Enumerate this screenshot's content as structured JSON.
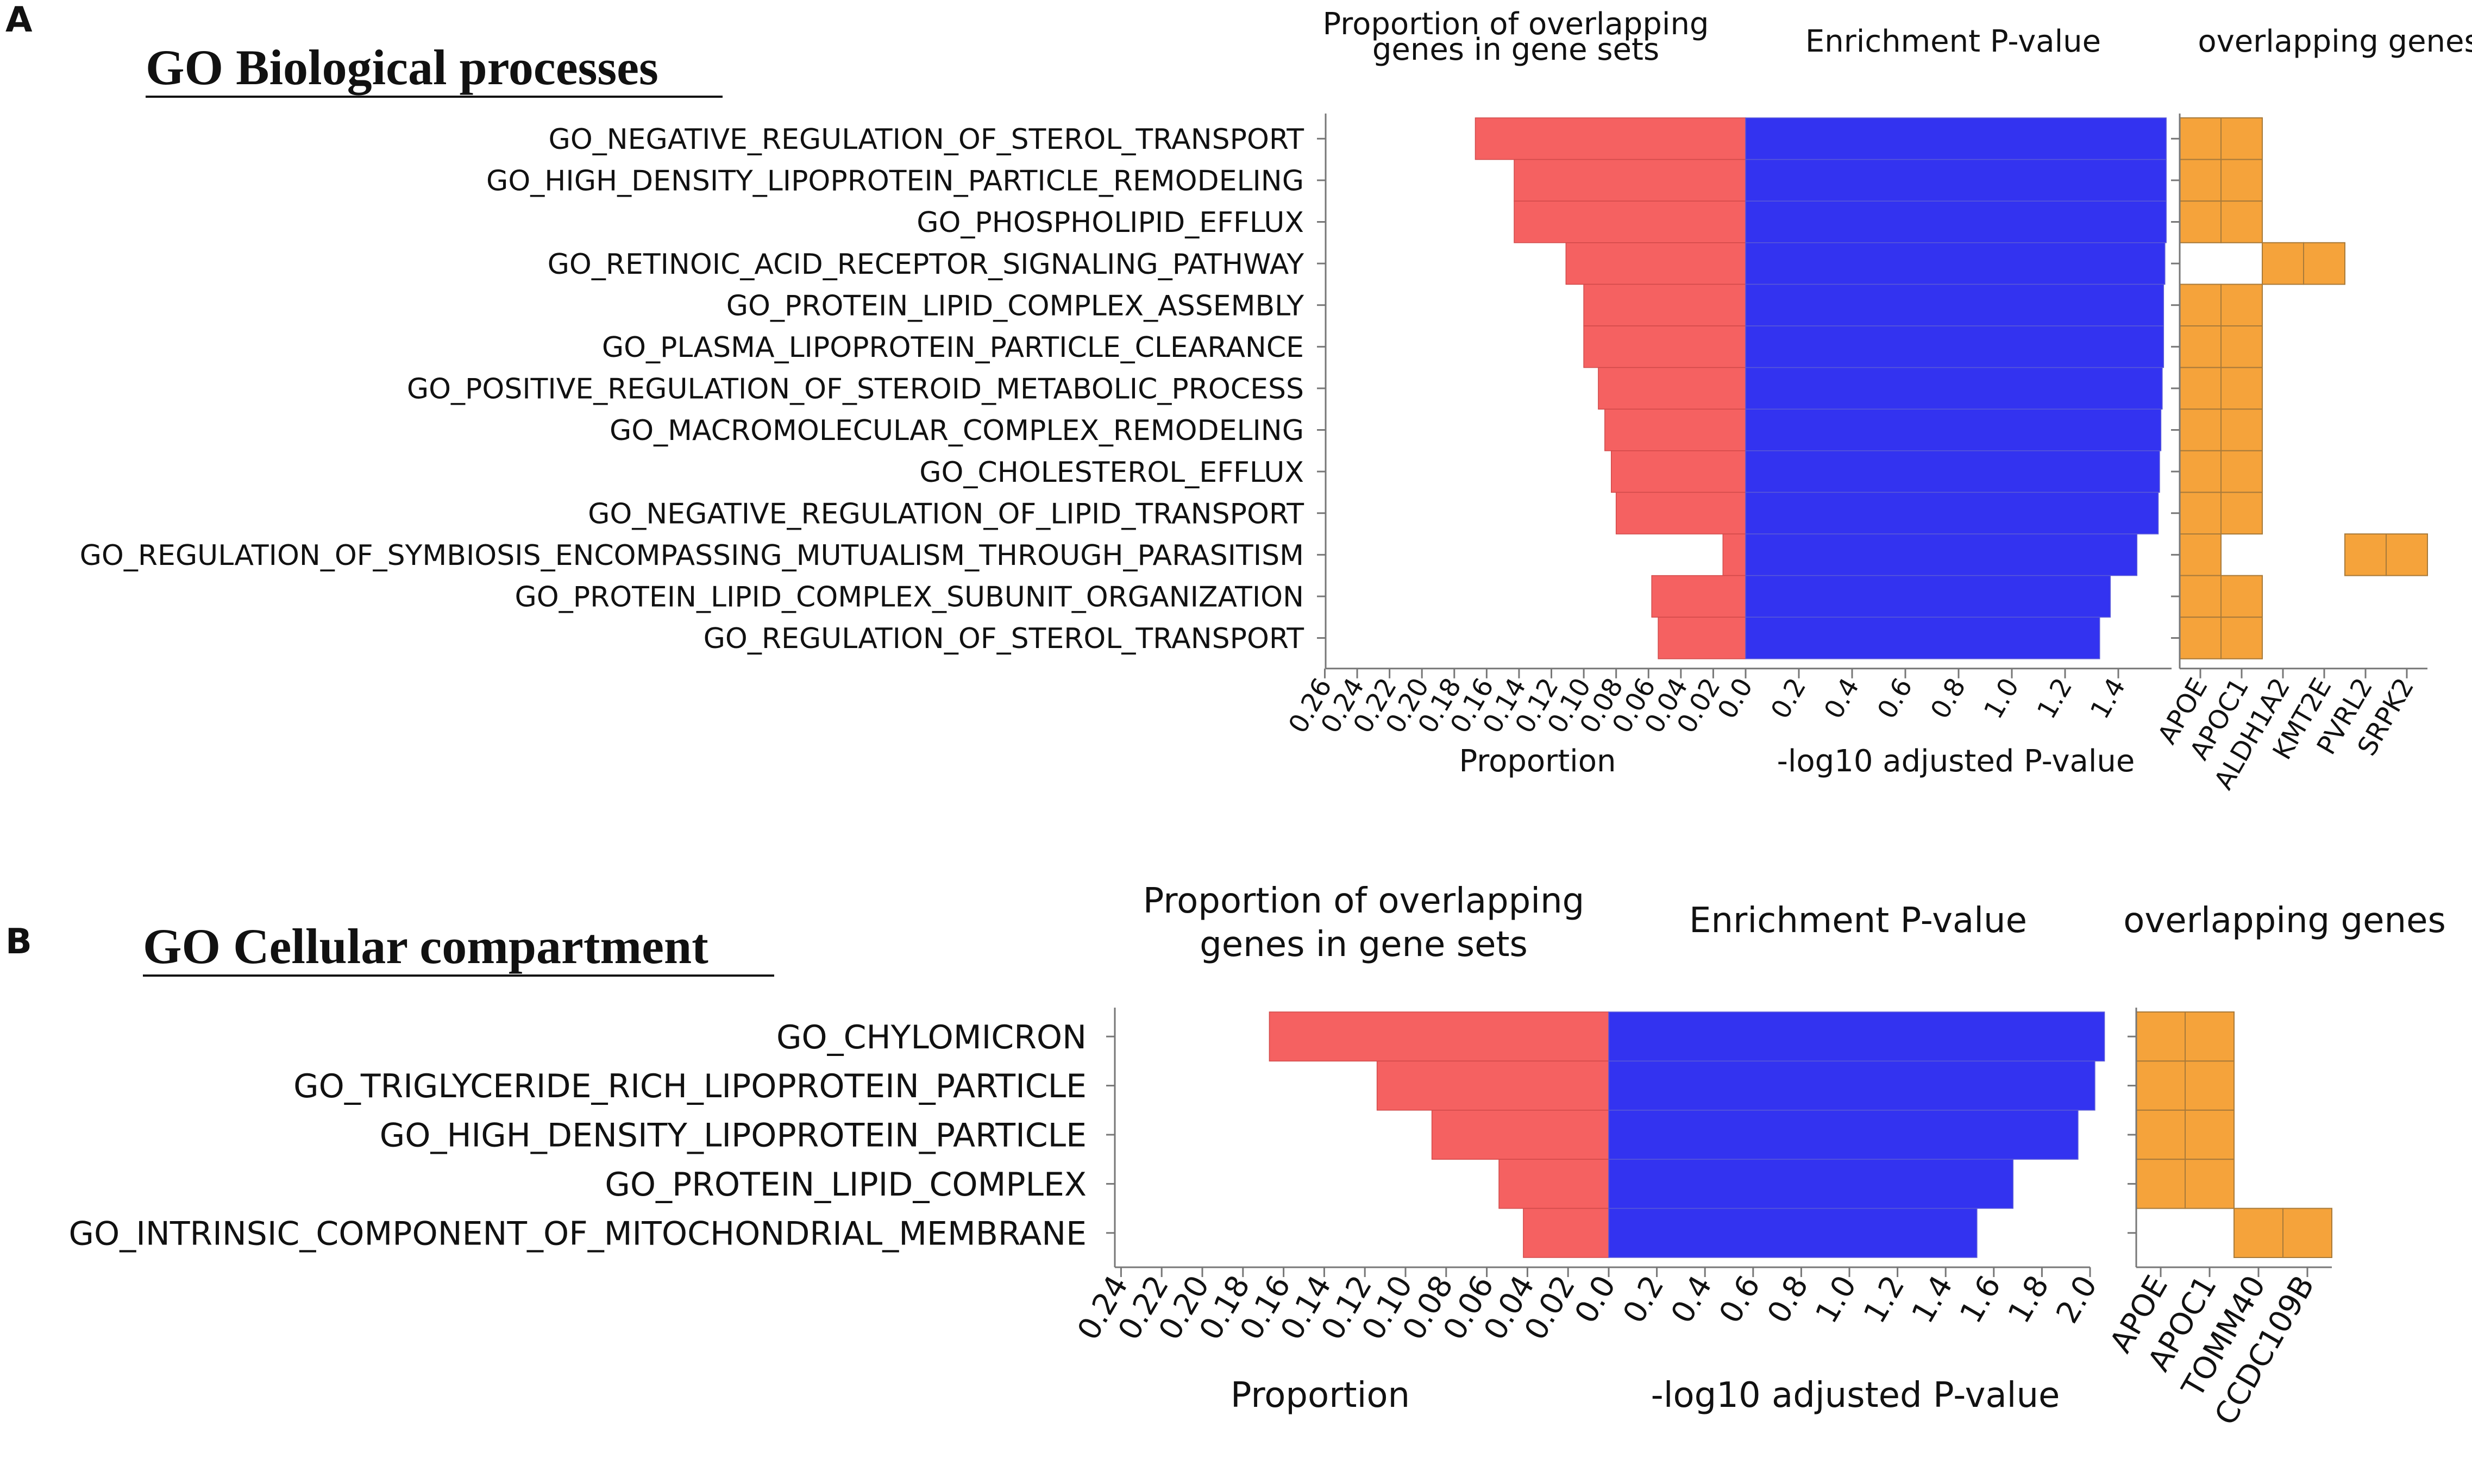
{
  "figure": {
    "panel_a": {
      "letter": "A",
      "heading": "GO Biological processes"
    },
    "panel_b": {
      "letter": "B",
      "heading": "GO Cellular compartment"
    }
  },
  "colors": {
    "proportion_bar": "#f56161",
    "pvalue_bar": "#3333f0",
    "gene_cell": "#f5a33b",
    "axis": "#777777",
    "text": "#111111"
  },
  "chart_data": [
    {
      "type": "bar",
      "panel": "A",
      "title": "GO Biological processes",
      "categories": [
        "GO_NEGATIVE_REGULATION_OF_STEROL_TRANSPORT",
        "GO_HIGH_DENSITY_LIPOPROTEIN_PARTICLE_REMODELING",
        "GO_PHOSPHOLIPID_EFFLUX",
        "GO_RETINOIC_ACID_RECEPTOR_SIGNALING_PATHWAY",
        "GO_PROTEIN_LIPID_COMPLEX_ASSEMBLY",
        "GO_PLASMA_LIPOPROTEIN_PARTICLE_CLEARANCE",
        "GO_POSITIVE_REGULATION_OF_STEROID_METABOLIC_PROCESS",
        "GO_MACROMOLECULAR_COMPLEX_REMODELING",
        "GO_CHOLESTEROL_EFFLUX",
        "GO_NEGATIVE_REGULATION_OF_LIPID_TRANSPORT",
        "GO_REGULATION_OF_SYMBIOSIS_ENCOMPASSING_MUTUALISM_THROUGH_PARASITISM",
        "GO_PROTEIN_LIPID_COMPLEX_SUBUNIT_ORGANIZATION",
        "GO_REGULATION_OF_STEROL_TRANSPORT"
      ],
      "proportion": {
        "title": "Proportion of overlapping genes in gene sets",
        "xlabel": "Proportion",
        "xlim": [
          0,
          0.27
        ],
        "ticks": [
          0.0,
          0.02,
          0.04,
          0.06,
          0.08,
          0.1,
          0.12,
          0.14,
          0.16,
          0.18,
          0.2,
          0.22,
          0.24,
          0.26
        ],
        "tick_labels": [
          "0.0",
          "0.02",
          "0.04",
          "0.06",
          "0.08",
          "0.10",
          "0.12",
          "0.14",
          "0.16",
          "0.18",
          "0.20",
          "0.22",
          "0.24",
          "0.26"
        ],
        "values": [
          0.167,
          0.143,
          0.143,
          0.111,
          0.1,
          0.1,
          0.091,
          0.087,
          0.083,
          0.08,
          0.014,
          0.058,
          0.054
        ]
      },
      "pvalue": {
        "title": "Enrichment P-value",
        "xlabel": "-log10 adjusted P-value",
        "xlim": [
          0,
          1.6
        ],
        "ticks": [
          0.0,
          0.2,
          0.4,
          0.6,
          0.8,
          1.0,
          1.2,
          1.4
        ],
        "tick_labels": [
          "0.0",
          "0.2",
          "0.4",
          "0.6",
          "0.8",
          "1.0",
          "1.2",
          "1.4"
        ],
        "values": [
          1.58,
          1.58,
          1.58,
          1.575,
          1.57,
          1.57,
          1.565,
          1.56,
          1.555,
          1.55,
          1.47,
          1.37,
          1.33
        ]
      },
      "genes": {
        "title": "overlapping genes",
        "names": [
          "APOE",
          "APOC1",
          "ALDH1A2",
          "KMT2E",
          "PVRL2",
          "SRPK2"
        ],
        "matrix": [
          [
            1,
            1,
            0,
            0,
            0,
            0
          ],
          [
            1,
            1,
            0,
            0,
            0,
            0
          ],
          [
            1,
            1,
            0,
            0,
            0,
            0
          ],
          [
            0,
            0,
            1,
            1,
            0,
            0
          ],
          [
            1,
            1,
            0,
            0,
            0,
            0
          ],
          [
            1,
            1,
            0,
            0,
            0,
            0
          ],
          [
            1,
            1,
            0,
            0,
            0,
            0
          ],
          [
            1,
            1,
            0,
            0,
            0,
            0
          ],
          [
            1,
            1,
            0,
            0,
            0,
            0
          ],
          [
            1,
            1,
            0,
            0,
            0,
            0
          ],
          [
            1,
            0,
            0,
            0,
            1,
            1
          ],
          [
            1,
            1,
            0,
            0,
            0,
            0
          ],
          [
            1,
            1,
            0,
            0,
            0,
            0
          ]
        ]
      }
    },
    {
      "type": "bar",
      "panel": "B",
      "title": "GO Cellular compartment",
      "categories": [
        "GO_CHYLOMICRON",
        "GO_TRIGLYCERIDE_RICH_LIPOPROTEIN_PARTICLE",
        "GO_HIGH_DENSITY_LIPOPROTEIN_PARTICLE",
        "GO_PROTEIN_LIPID_COMPLEX",
        "GO_INTRINSIC_COMPONENT_OF_MITOCHONDRIAL_MEMBRANE"
      ],
      "proportion": {
        "title": "Proportion of overlapping genes in gene sets",
        "xlabel": "Proportion",
        "xlim": [
          0,
          0.25
        ],
        "ticks": [
          0.0,
          0.02,
          0.04,
          0.06,
          0.08,
          0.1,
          0.12,
          0.14,
          0.16,
          0.18,
          0.2,
          0.22,
          0.24
        ],
        "tick_labels": [
          "0.0",
          "0.02",
          "0.04",
          "0.06",
          "0.08",
          "0.10",
          "0.12",
          "0.14",
          "0.16",
          "0.18",
          "0.20",
          "0.22",
          "0.24"
        ],
        "values": [
          0.167,
          0.114,
          0.087,
          0.054,
          0.042
        ]
      },
      "pvalue": {
        "title": "Enrichment P-value",
        "xlabel": "-log10 adjusted P-value",
        "xlim": [
          0,
          2.0
        ],
        "ticks": [
          0.0,
          0.2,
          0.4,
          0.6,
          0.8,
          1.0,
          1.2,
          1.4,
          1.6,
          1.8,
          2.0
        ],
        "tick_labels": [
          "0.0",
          "0.2",
          "0.4",
          "0.6",
          "0.8",
          "1.0",
          "1.2",
          "1.4",
          "1.6",
          "1.8",
          "2.0"
        ],
        "values": [
          2.06,
          2.02,
          1.95,
          1.68,
          1.53
        ]
      },
      "genes": {
        "title": "overlapping genes",
        "names": [
          "APOE",
          "APOC1",
          "TOMM40",
          "CCDC109B"
        ],
        "matrix": [
          [
            1,
            1,
            0,
            0
          ],
          [
            1,
            1,
            0,
            0
          ],
          [
            1,
            1,
            0,
            0
          ],
          [
            1,
            1,
            0,
            0
          ],
          [
            0,
            0,
            1,
            1
          ]
        ]
      }
    }
  ]
}
